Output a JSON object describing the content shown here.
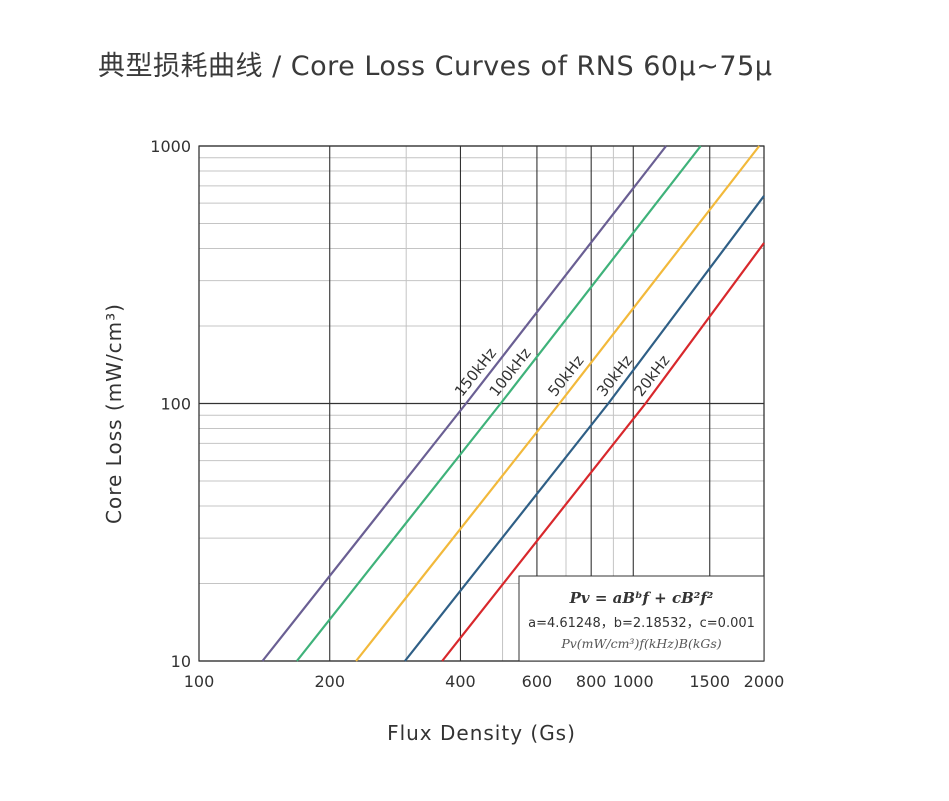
{
  "title": "典型损耗曲线 / Core Loss Curves of RNS 60μ~75μ",
  "chart_data": {
    "type": "line",
    "xlabel": "Flux Density (Gs)",
    "ylabel": "Core Loss (mW/cm³)",
    "x_scale": "log",
    "y_scale": "log",
    "xlim": [
      100,
      2000
    ],
    "ylim": [
      10,
      1000
    ],
    "x_ticks": [
      100,
      200,
      400,
      600,
      800,
      1000,
      1500,
      2000
    ],
    "x_tick_labels": [
      "100",
      "200",
      "400",
      "600",
      "800",
      "1000",
      "1500",
      "2000"
    ],
    "y_ticks": [
      10,
      100,
      1000
    ],
    "y_tick_labels": [
      "10",
      "100",
      "1000"
    ],
    "grid": true,
    "series": [
      {
        "name": "150kHz",
        "color": "#6a5f93",
        "x": [
          140,
          412,
          1190
        ],
        "y": [
          10,
          100,
          1000
        ]
      },
      {
        "name": "100kHz",
        "color": "#3fb27a",
        "x": [
          168,
          495,
          1430
        ],
        "y": [
          10,
          100,
          1000
        ]
      },
      {
        "name": "50kHz",
        "color": "#f2b93b",
        "x": [
          230,
          676,
          1950
        ],
        "y": [
          10,
          100,
          1000
        ]
      },
      {
        "name": "30kHz",
        "color": "#2f5f86",
        "x": [
          298,
          876,
          2000
        ],
        "y": [
          10,
          100,
          640
        ]
      },
      {
        "name": "20kHz",
        "color": "#d8282c",
        "x": [
          363,
          1067,
          2000
        ],
        "y": [
          10,
          100,
          420
        ]
      }
    ],
    "formula": {
      "equation": "Pv = aBᵇf + cB²f²",
      "coefficients": "a=4.61248，b=2.18532，c=0.001",
      "units": "Pv(mW/cm³)f(kHz)B(kGs)"
    }
  }
}
